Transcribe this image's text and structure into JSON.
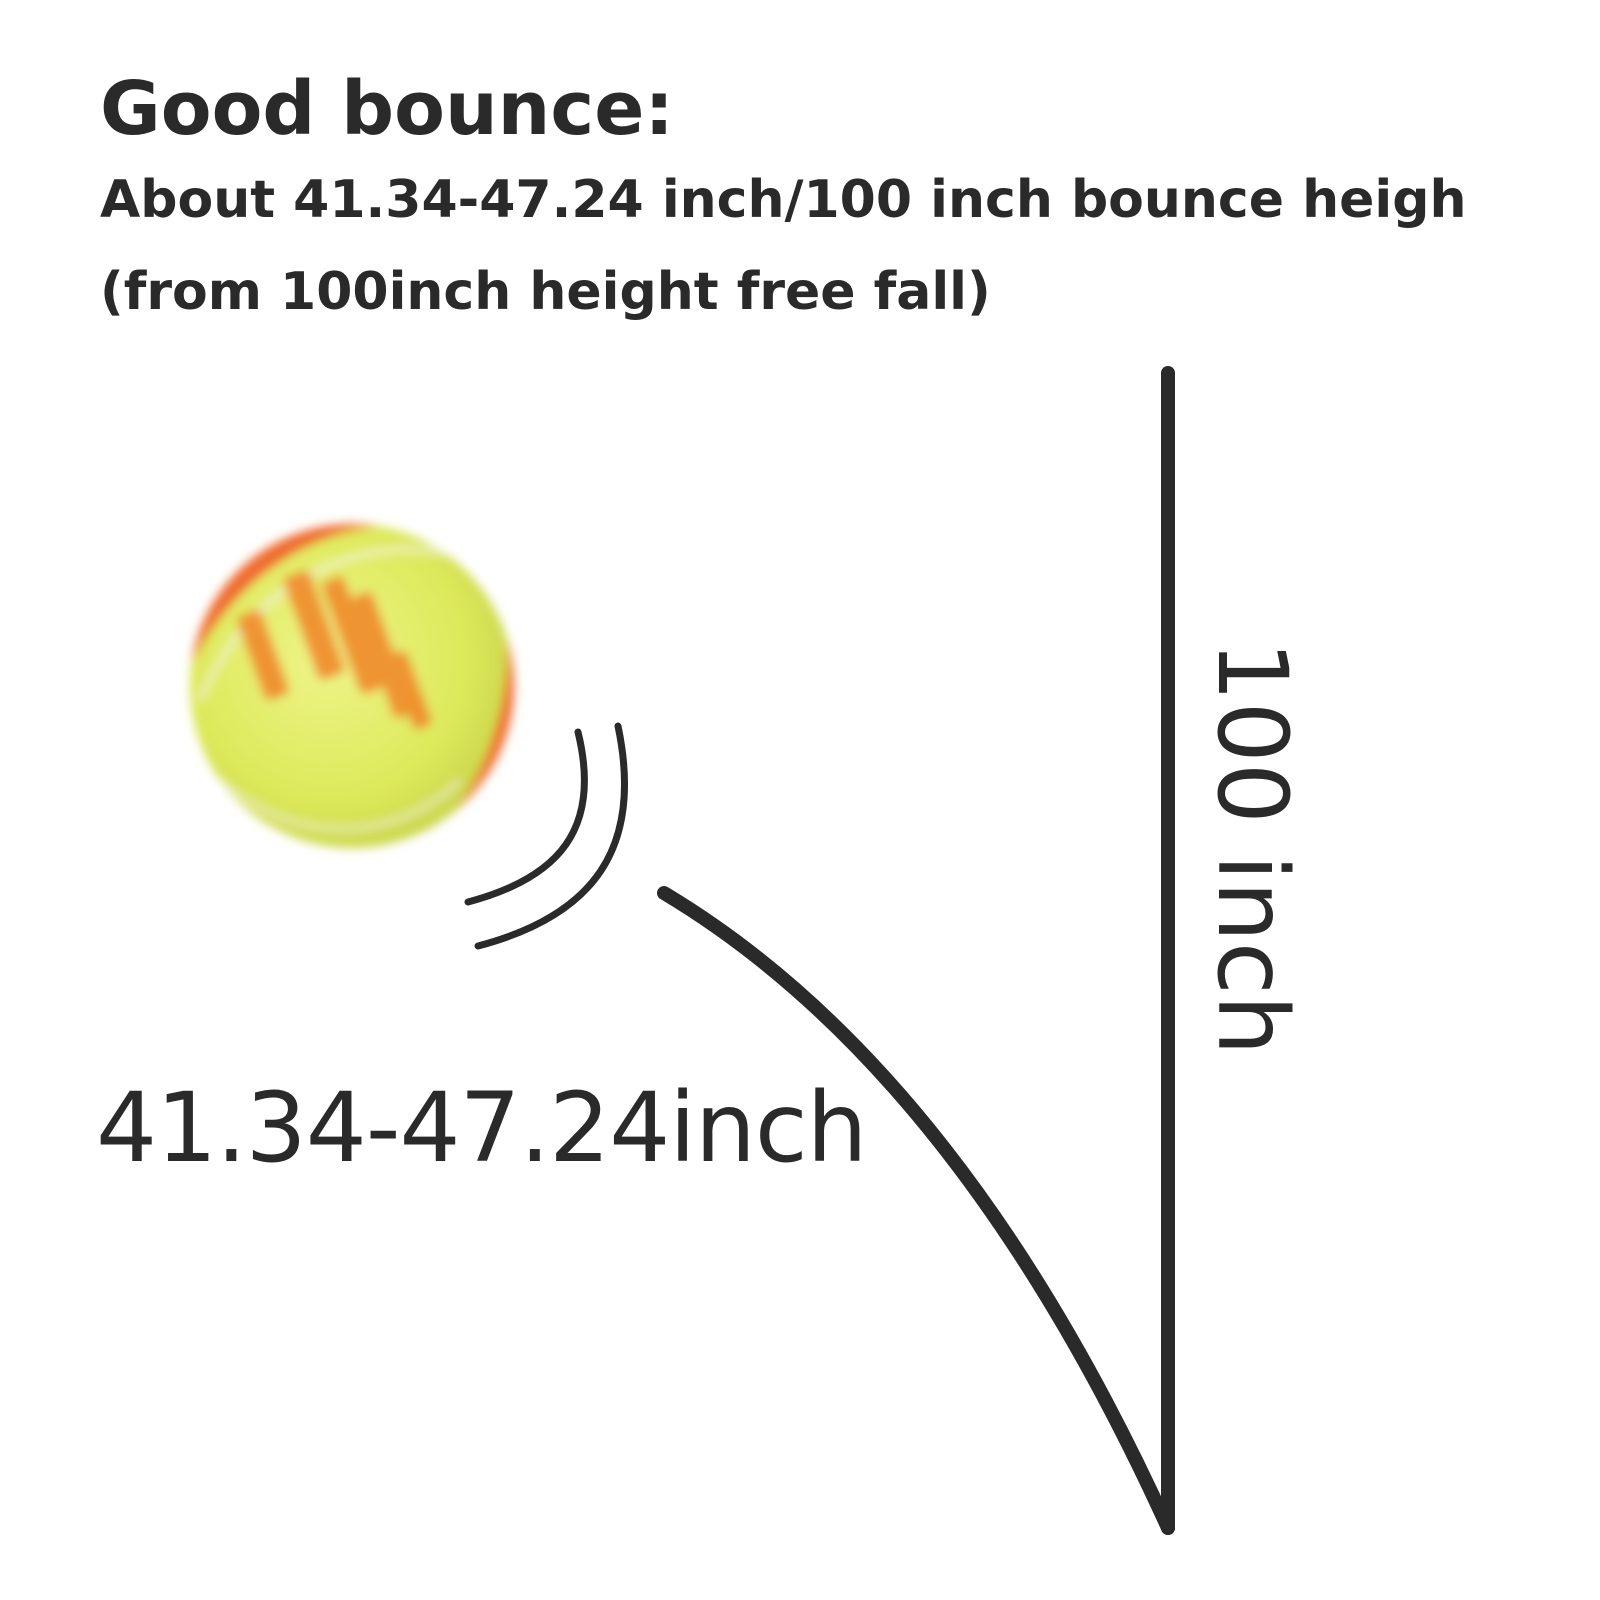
{
  "header": {
    "title": "Good bounce:",
    "line1": "About 41.34-47.24 inch/100 inch bounce heigh",
    "line2": "(from 100inch height free fall)"
  },
  "diagram": {
    "bounce_label": "41.34-47.24inch",
    "drop_label": "100 inch",
    "colors": {
      "line": "#2a2a2a",
      "ball_felt": "#dde95a",
      "ball_rubber": "#ef6a2e",
      "ball_print": "#f08a2a"
    },
    "icons": [
      "tennis-ball-icon",
      "motion-lines-icon"
    ]
  }
}
